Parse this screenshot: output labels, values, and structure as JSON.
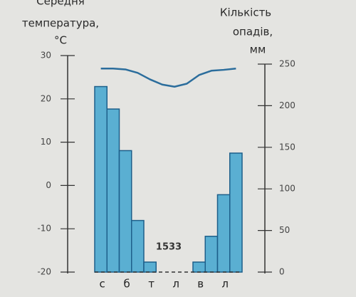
{
  "chart_data": {
    "type": "bar",
    "y_axis_label": [
      "Середня",
      "температура,",
      "°C"
    ],
    "y2_axis_label": [
      "Кількість",
      "опадів,",
      "мм"
    ],
    "annotation": "1533",
    "categories": [
      "с",
      null,
      "б",
      null,
      "т",
      null,
      "л",
      null,
      "в",
      null,
      "л",
      null
    ],
    "series": [
      {
        "type": "bar",
        "axis": "y2",
        "color": "#5aafd2",
        "values": [
          223,
          196,
          146,
          62,
          12,
          0,
          0,
          0,
          12,
          43,
          93,
          143
        ]
      },
      {
        "type": "line",
        "axis": "y",
        "color": "#2b6d9c",
        "values": [
          27,
          27,
          26.8,
          26,
          24.5,
          23.3,
          22.8,
          23.5,
          25.5,
          26.5,
          26.7,
          27
        ]
      }
    ],
    "ylim": [
      -20,
      30
    ],
    "yticks": [
      -20,
      -10,
      0,
      10,
      20,
      30
    ],
    "y2lim": [
      0,
      250
    ],
    "y2ticks": [
      0,
      50,
      100,
      150,
      200,
      250
    ]
  }
}
